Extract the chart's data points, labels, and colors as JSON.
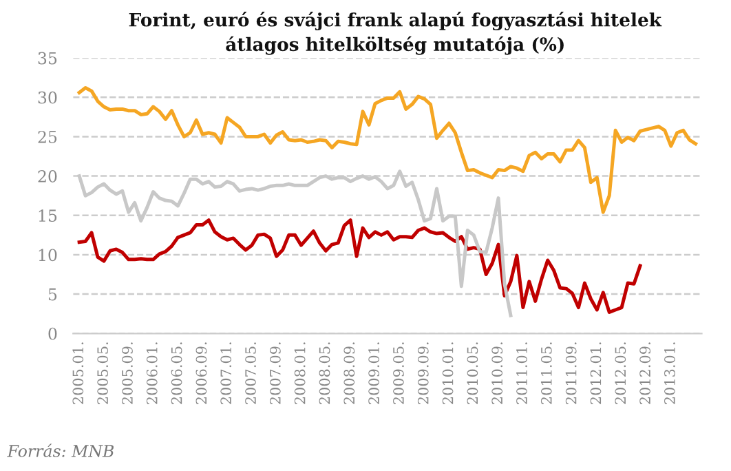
{
  "chart_data": {
    "type": "line",
    "title": "Forint, euró és svájci frank alapú fogyasztási hitelek\nátlagos hitelköltség mutatója (%)",
    "categories": [
      "2005.01.",
      null,
      null,
      null,
      "2005.05.",
      null,
      null,
      null,
      "2005.09.",
      null,
      null,
      null,
      "2006.01.",
      null,
      null,
      null,
      "2006.05.",
      null,
      null,
      null,
      "2006.09.",
      null,
      null,
      null,
      "2007.01.",
      null,
      null,
      null,
      "2007.05.",
      null,
      null,
      null,
      "2007.09.",
      null,
      null,
      null,
      "2008.01.",
      null,
      null,
      null,
      "2008.05.",
      null,
      null,
      null,
      "2008.09.",
      null,
      null,
      null,
      "2009.01.",
      null,
      null,
      null,
      "2009.05.",
      null,
      null,
      null,
      "2009.09.",
      null,
      null,
      null,
      "2010.01.",
      null,
      null,
      null,
      "2010.05.",
      null,
      null,
      null,
      "2010.09.",
      null,
      null,
      null,
      "2011.01.",
      null,
      null,
      null,
      "2011.05.",
      null,
      null,
      null,
      "2011.09.",
      null,
      null,
      null,
      "2012.01.",
      null,
      null,
      null,
      "2012.05.",
      null,
      null,
      null,
      "2012.09.",
      null,
      null,
      null,
      "2013.01.",
      null,
      null,
      null,
      null
    ],
    "series": [
      {
        "color": "#f5a623",
        "values": [
          30.6,
          31.2,
          30.8,
          29.5,
          28.8,
          28.4,
          28.5,
          28.5,
          28.3,
          28.3,
          27.8,
          27.9,
          28.8,
          28.2,
          27.2,
          28.3,
          26.5,
          25.0,
          25.5,
          27.1,
          25.3,
          25.5,
          25.3,
          24.2,
          27.4,
          26.8,
          26.2,
          25.0,
          25.0,
          25.0,
          25.3,
          24.2,
          25.2,
          25.6,
          24.6,
          24.5,
          24.6,
          24.3,
          24.4,
          24.6,
          24.5,
          23.6,
          24.4,
          24.3,
          24.1,
          24.0,
          28.2,
          26.5,
          29.2,
          29.6,
          29.9,
          29.9,
          30.7,
          28.5,
          29.1,
          30.1,
          29.8,
          29.1,
          24.8,
          25.8,
          26.7,
          25.5,
          23.0,
          20.7,
          20.8,
          20.4,
          20.1,
          19.8,
          20.8,
          20.7,
          21.2,
          21.0,
          20.6,
          22.6,
          23.0,
          22.2,
          22.8,
          22.8,
          21.8,
          23.3,
          23.3,
          24.5,
          23.6,
          19.2,
          19.8,
          15.4,
          17.5,
          25.8,
          24.3,
          24.9,
          24.5,
          25.7,
          25.9,
          26.1,
          26.3,
          25.8,
          23.8,
          25.5,
          25.8,
          24.6,
          24.1
        ]
      },
      {
        "color": "#c00000",
        "values": [
          11.6,
          11.7,
          12.8,
          9.7,
          9.2,
          10.5,
          10.7,
          10.3,
          9.4,
          9.4,
          9.5,
          9.4,
          9.4,
          10.1,
          10.4,
          11.1,
          12.2,
          12.5,
          12.8,
          13.8,
          13.8,
          14.4,
          12.9,
          12.3,
          11.9,
          12.1,
          11.3,
          10.6,
          11.2,
          12.5,
          12.6,
          12.1,
          9.8,
          10.6,
          12.5,
          12.5,
          11.2,
          12.1,
          13.0,
          11.5,
          10.5,
          11.3,
          11.5,
          13.7,
          14.4,
          9.8,
          13.4,
          12.2,
          12.9,
          12.5,
          12.9,
          11.9,
          12.3,
          12.3,
          12.2,
          13.1,
          13.4,
          12.9,
          12.7,
          12.8,
          12.2,
          11.7,
          12.3,
          10.7,
          10.9,
          10.7,
          7.5,
          8.9,
          11.3,
          4.8,
          6.6,
          9.9,
          3.3,
          6.6,
          4.1,
          6.9,
          9.3,
          8.0,
          5.8,
          5.7,
          5.1,
          3.3,
          6.4,
          4.4,
          3.0,
          5.2,
          2.7,
          3.0,
          3.3,
          6.4,
          6.3,
          8.6,
          null,
          null,
          null,
          null,
          null,
          null,
          null,
          null,
          null
        ]
      },
      {
        "color": "#c8c8c8",
        "values": [
          20.0,
          17.5,
          17.9,
          18.6,
          19.0,
          18.2,
          17.7,
          18.1,
          15.4,
          16.6,
          14.3,
          16.0,
          18.0,
          17.2,
          16.9,
          16.8,
          16.2,
          17.8,
          19.6,
          19.6,
          19.0,
          19.3,
          18.6,
          18.7,
          19.3,
          19.0,
          18.1,
          18.3,
          18.4,
          18.2,
          18.4,
          18.7,
          18.8,
          18.8,
          19.0,
          18.8,
          18.8,
          18.8,
          19.3,
          19.8,
          20.0,
          19.6,
          19.8,
          19.8,
          19.3,
          19.7,
          20.0,
          19.6,
          19.9,
          19.3,
          18.4,
          18.8,
          20.6,
          18.7,
          19.2,
          17.0,
          14.3,
          14.6,
          18.4,
          14.3,
          14.9,
          14.9,
          6.0,
          13.1,
          12.5,
          10.4,
          10.3,
          13.4,
          17.2,
          6.3,
          2.3,
          null,
          null,
          null,
          null,
          null,
          null,
          null,
          null,
          null,
          null,
          null,
          null,
          null,
          null,
          null,
          null,
          null,
          null,
          null,
          null,
          null,
          null,
          null,
          null,
          null,
          null,
          null,
          null,
          null,
          null
        ]
      }
    ],
    "ylim": [
      0,
      35
    ],
    "yticks": [
      0,
      5,
      10,
      15,
      20,
      25,
      30,
      35
    ],
    "grid": "y",
    "legend": false,
    "marker": "none",
    "line_style": "solid",
    "annotations": [
      "Forrás: MNB"
    ]
  }
}
